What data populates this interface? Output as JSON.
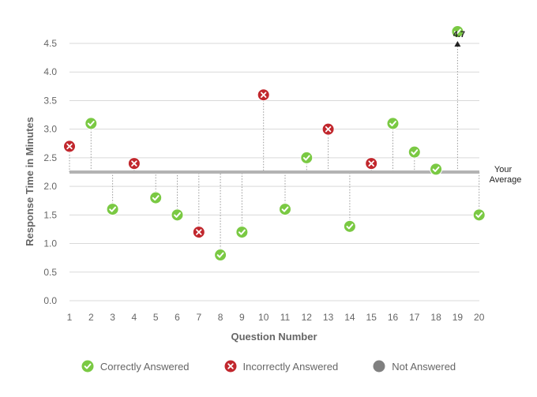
{
  "chart_data": {
    "type": "scatter",
    "xlabel": "Question Number",
    "ylabel": "Response Time in Minutes",
    "ylim": [
      0,
      4.5
    ],
    "yticks": [
      "0.0",
      "0.5",
      "1.0",
      "1.5",
      "2.0",
      "2.5",
      "3.0",
      "3.5",
      "4.0",
      "4.5"
    ],
    "categories": [
      "1",
      "2",
      "3",
      "4",
      "5",
      "6",
      "7",
      "8",
      "9",
      "10",
      "11",
      "12",
      "13",
      "14",
      "15",
      "16",
      "17",
      "18",
      "19",
      "20"
    ],
    "points": [
      {
        "q": "1",
        "value": 2.7,
        "status": "incorrect"
      },
      {
        "q": "2",
        "value": 3.1,
        "status": "correct"
      },
      {
        "q": "3",
        "value": 1.6,
        "status": "correct"
      },
      {
        "q": "4",
        "value": 2.4,
        "status": "incorrect"
      },
      {
        "q": "5",
        "value": 1.8,
        "status": "correct"
      },
      {
        "q": "6",
        "value": 1.5,
        "status": "correct"
      },
      {
        "q": "7",
        "value": 1.2,
        "status": "incorrect"
      },
      {
        "q": "8",
        "value": 0.8,
        "status": "correct"
      },
      {
        "q": "9",
        "value": 1.2,
        "status": "correct"
      },
      {
        "q": "10",
        "value": 3.6,
        "status": "incorrect"
      },
      {
        "q": "11",
        "value": 1.6,
        "status": "correct"
      },
      {
        "q": "12",
        "value": 2.5,
        "status": "correct"
      },
      {
        "q": "13",
        "value": 3.0,
        "status": "incorrect"
      },
      {
        "q": "14",
        "value": 1.3,
        "status": "correct"
      },
      {
        "q": "15",
        "value": 2.4,
        "status": "incorrect"
      },
      {
        "q": "16",
        "value": 3.1,
        "status": "correct"
      },
      {
        "q": "17",
        "value": 2.6,
        "status": "correct"
      },
      {
        "q": "18",
        "value": 2.3,
        "status": "correct"
      },
      {
        "q": "19",
        "value": 4.7,
        "status": "correct"
      },
      {
        "q": "20",
        "value": 1.5,
        "status": "correct"
      }
    ],
    "average": {
      "value": 2.25,
      "label_line1": "Your",
      "label_line2": "Average"
    },
    "overflow_label": "4.7",
    "legend": [
      {
        "status": "correct",
        "label": "Correctly Answered"
      },
      {
        "status": "incorrect",
        "label": "Incorrectly Answered"
      },
      {
        "status": "unanswered",
        "label": "Not Answered"
      }
    ],
    "colors": {
      "correct": "#7ac943",
      "incorrect": "#c1272d",
      "unanswered": "#808080",
      "average_line": "#b3b3b3",
      "grid": "#d9d9d9",
      "stem": "#999999"
    }
  }
}
